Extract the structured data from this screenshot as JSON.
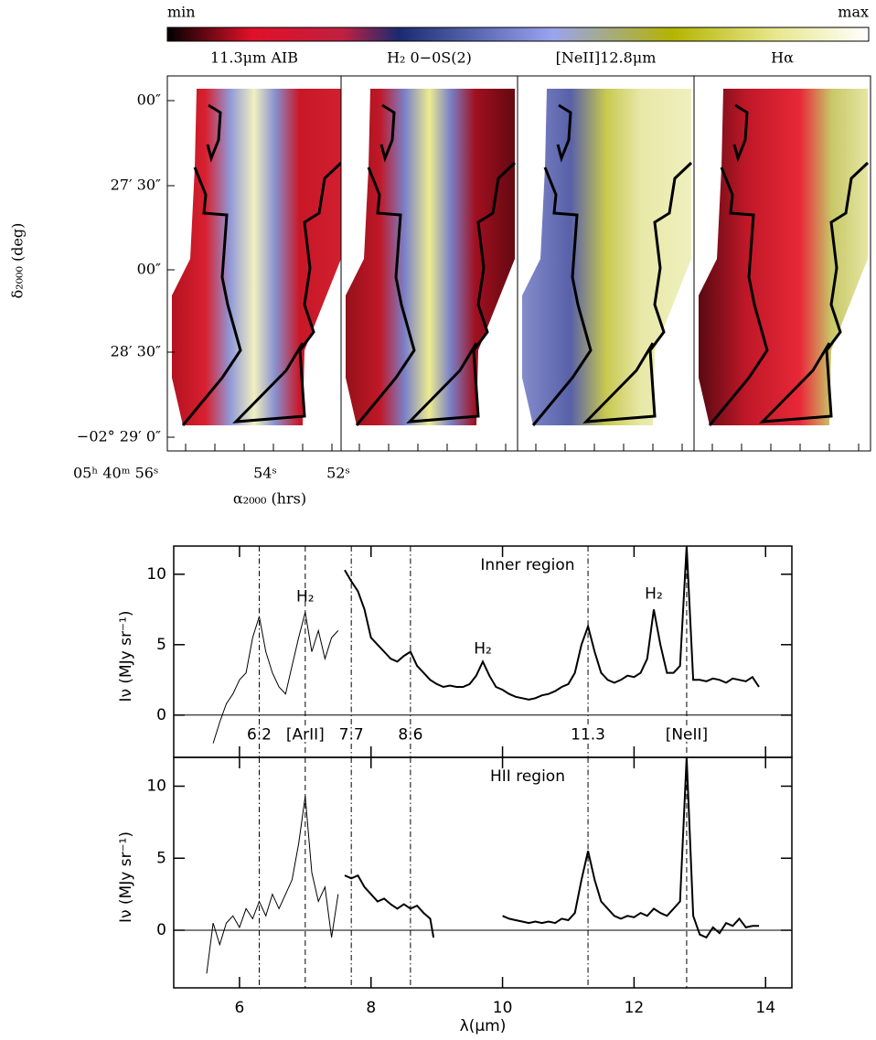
{
  "maps": {
    "colorbar": {
      "min_label": "min",
      "max_label": "max"
    },
    "panels": [
      {
        "title": "11.3μm AIB"
      },
      {
        "title": "H₂ 0−0S(2)"
      },
      {
        "title": "[NeII]12.8μm"
      },
      {
        "title": "Hα"
      }
    ],
    "yticks": [
      "00″",
      "27′ 30″",
      "00″",
      "28′ 30″",
      "−02° 29′ 0″"
    ],
    "xticks": [
      "05ʰ 40ᵐ 56ˢ",
      "54ˢ",
      "52ˢ"
    ],
    "ylabel": "δ₂₀₀₀ (deg)",
    "xlabel": "α₂₀₀₀ (hrs)"
  },
  "chart_data": [
    {
      "type": "line",
      "title": "Inner region",
      "ylabel": "Iν (MJy sr⁻¹)",
      "xlim": [
        5,
        14.4
      ],
      "xticks": [
        6,
        8,
        10,
        12,
        14
      ],
      "ylim": [
        -3,
        12
      ],
      "yticks": [
        0,
        5,
        10
      ],
      "color": "#000",
      "series": [
        {
          "linewidth": 1,
          "x": [
            5.6,
            5.7,
            5.8,
            5.9,
            6.0,
            6.1,
            6.2,
            6.3,
            6.4,
            6.5,
            6.6,
            6.7,
            6.8,
            6.9,
            7.0,
            7.1,
            7.2,
            7.3,
            7.4,
            7.5
          ],
          "values": [
            -2,
            -0.5,
            0.8,
            1.5,
            2.5,
            3.0,
            5.5,
            7.0,
            4.5,
            3.0,
            2.0,
            1.5,
            3.5,
            5.5,
            7.3,
            4.5,
            6.0,
            4.0,
            5.5,
            6.0
          ]
        },
        {
          "linewidth": 2,
          "x": [
            7.6,
            7.7,
            7.8,
            7.9,
            8.0,
            8.1,
            8.2,
            8.3,
            8.4,
            8.5,
            8.6,
            8.7,
            8.8,
            8.9,
            9.0,
            9.1,
            9.2,
            9.3,
            9.4,
            9.5,
            9.6,
            9.7,
            9.8,
            9.9,
            10.0,
            10.1,
            10.2,
            10.3,
            10.4,
            10.5,
            10.6,
            10.7,
            10.8,
            10.9,
            11.0,
            11.1,
            11.2,
            11.3,
            11.4,
            11.5,
            11.6,
            11.7,
            11.8,
            11.9,
            12.0,
            12.1,
            12.2,
            12.3,
            12.4,
            12.5,
            12.6,
            12.7,
            12.8,
            12.9,
            13.0,
            13.1,
            13.2,
            13.3,
            13.4,
            13.5,
            13.6,
            13.7,
            13.8,
            13.9
          ],
          "values": [
            10.3,
            9.5,
            8.8,
            7.5,
            5.5,
            5.0,
            4.5,
            4.0,
            3.8,
            4.2,
            4.5,
            3.5,
            3.0,
            2.5,
            2.2,
            2.0,
            2.1,
            2.0,
            2.0,
            2.2,
            2.8,
            3.8,
            2.8,
            2.0,
            1.8,
            1.5,
            1.3,
            1.2,
            1.1,
            1.2,
            1.4,
            1.5,
            1.7,
            2.0,
            2.2,
            3.0,
            5.0,
            6.3,
            4.5,
            3.0,
            2.5,
            2.3,
            2.5,
            2.8,
            2.7,
            3.0,
            4.0,
            7.5,
            5.0,
            3.0,
            3.0,
            3.5,
            12,
            2.5,
            2.5,
            2.4,
            2.6,
            2.5,
            2.3,
            2.6,
            2.5,
            2.4,
            2.7,
            2.0
          ]
        }
      ],
      "annotations": [
        {
          "text": "H₂",
          "x": 7.0,
          "y": 8.4
        },
        {
          "text": "H₂",
          "x": 9.7,
          "y": 4.7
        },
        {
          "text": "H₂",
          "x": 12.3,
          "y": 8.6
        }
      ],
      "vlines": [
        {
          "x": 6.3,
          "style": "dashdot",
          "label": "6.2"
        },
        {
          "x": 7.0,
          "style": "dashed",
          "label": "[ArII]"
        },
        {
          "x": 7.7,
          "style": "dashdot",
          "label": "7.7"
        },
        {
          "x": 8.6,
          "style": "dashdot",
          "label": "8.6"
        },
        {
          "x": 11.3,
          "style": "dashdot",
          "label": "11.3"
        },
        {
          "x": 12.8,
          "style": "dashed",
          "label": "[NeII]"
        }
      ]
    },
    {
      "type": "line",
      "title": "HII region",
      "ylabel": "Iν (MJy sr⁻¹)",
      "xlabel": "λ(μm)",
      "xlim": [
        5,
        14.4
      ],
      "xticks": [
        6,
        8,
        10,
        12,
        14
      ],
      "ylim": [
        -4,
        12
      ],
      "yticks": [
        0,
        5,
        10
      ],
      "color": "#000",
      "series": [
        {
          "linewidth": 1,
          "x": [
            5.5,
            5.6,
            5.7,
            5.8,
            5.9,
            6.0,
            6.1,
            6.2,
            6.3,
            6.4,
            6.5,
            6.6,
            6.7,
            6.8,
            6.9,
            7.0,
            7.1,
            7.2,
            7.3,
            7.4,
            7.5
          ],
          "values": [
            -3,
            0.5,
            -1,
            0.5,
            1,
            0.2,
            1.5,
            0.8,
            2.0,
            1.0,
            2.5,
            1.5,
            2.5,
            3.5,
            6.0,
            9.3,
            4.0,
            2.0,
            3.0,
            -0.5,
            2.5
          ]
        },
        {
          "linewidth": 2,
          "x": [
            7.6,
            7.7,
            7.8,
            7.9,
            8.0,
            8.1,
            8.2,
            8.3,
            8.4,
            8.5,
            8.6,
            8.7,
            8.8,
            8.9,
            8.95,
            9.5,
            10.0,
            10.1,
            10.2,
            10.3,
            10.4,
            10.5,
            10.6,
            10.7,
            10.8,
            10.9,
            11.0,
            11.1,
            11.2,
            11.3,
            11.4,
            11.5,
            11.6,
            11.7,
            11.8,
            11.9,
            12.0,
            12.1,
            12.2,
            12.3,
            12.4,
            12.5,
            12.6,
            12.7,
            12.8,
            12.9,
            13.0,
            13.1,
            13.2,
            13.3,
            13.4,
            13.5,
            13.6,
            13.7,
            13.8,
            13.9
          ],
          "values": [
            3.8,
            3.6,
            3.8,
            3.0,
            2.5,
            2.0,
            2.2,
            1.8,
            1.5,
            1.8,
            1.5,
            1.7,
            1.2,
            0.8,
            -0.5,
            null,
            1.0,
            0.8,
            0.7,
            0.6,
            0.5,
            0.6,
            0.5,
            0.6,
            0.5,
            0.8,
            0.7,
            1.2,
            3.5,
            5.5,
            3.5,
            2.0,
            1.5,
            1.0,
            0.8,
            1.0,
            0.9,
            1.2,
            1.0,
            1.5,
            1.2,
            1.0,
            1.5,
            2.0,
            12,
            1.0,
            -0.3,
            -0.5,
            0.2,
            -0.2,
            0.5,
            0.3,
            0.8,
            0.2,
            0.3,
            0.3
          ]
        }
      ],
      "vlines": [
        {
          "x": 6.3,
          "style": "dashdot"
        },
        {
          "x": 7.0,
          "style": "dashed"
        },
        {
          "x": 7.7,
          "style": "dashdot"
        },
        {
          "x": 8.6,
          "style": "dashdot"
        },
        {
          "x": 11.3,
          "style": "dashdot"
        },
        {
          "x": 12.8,
          "style": "dashed"
        }
      ]
    }
  ]
}
